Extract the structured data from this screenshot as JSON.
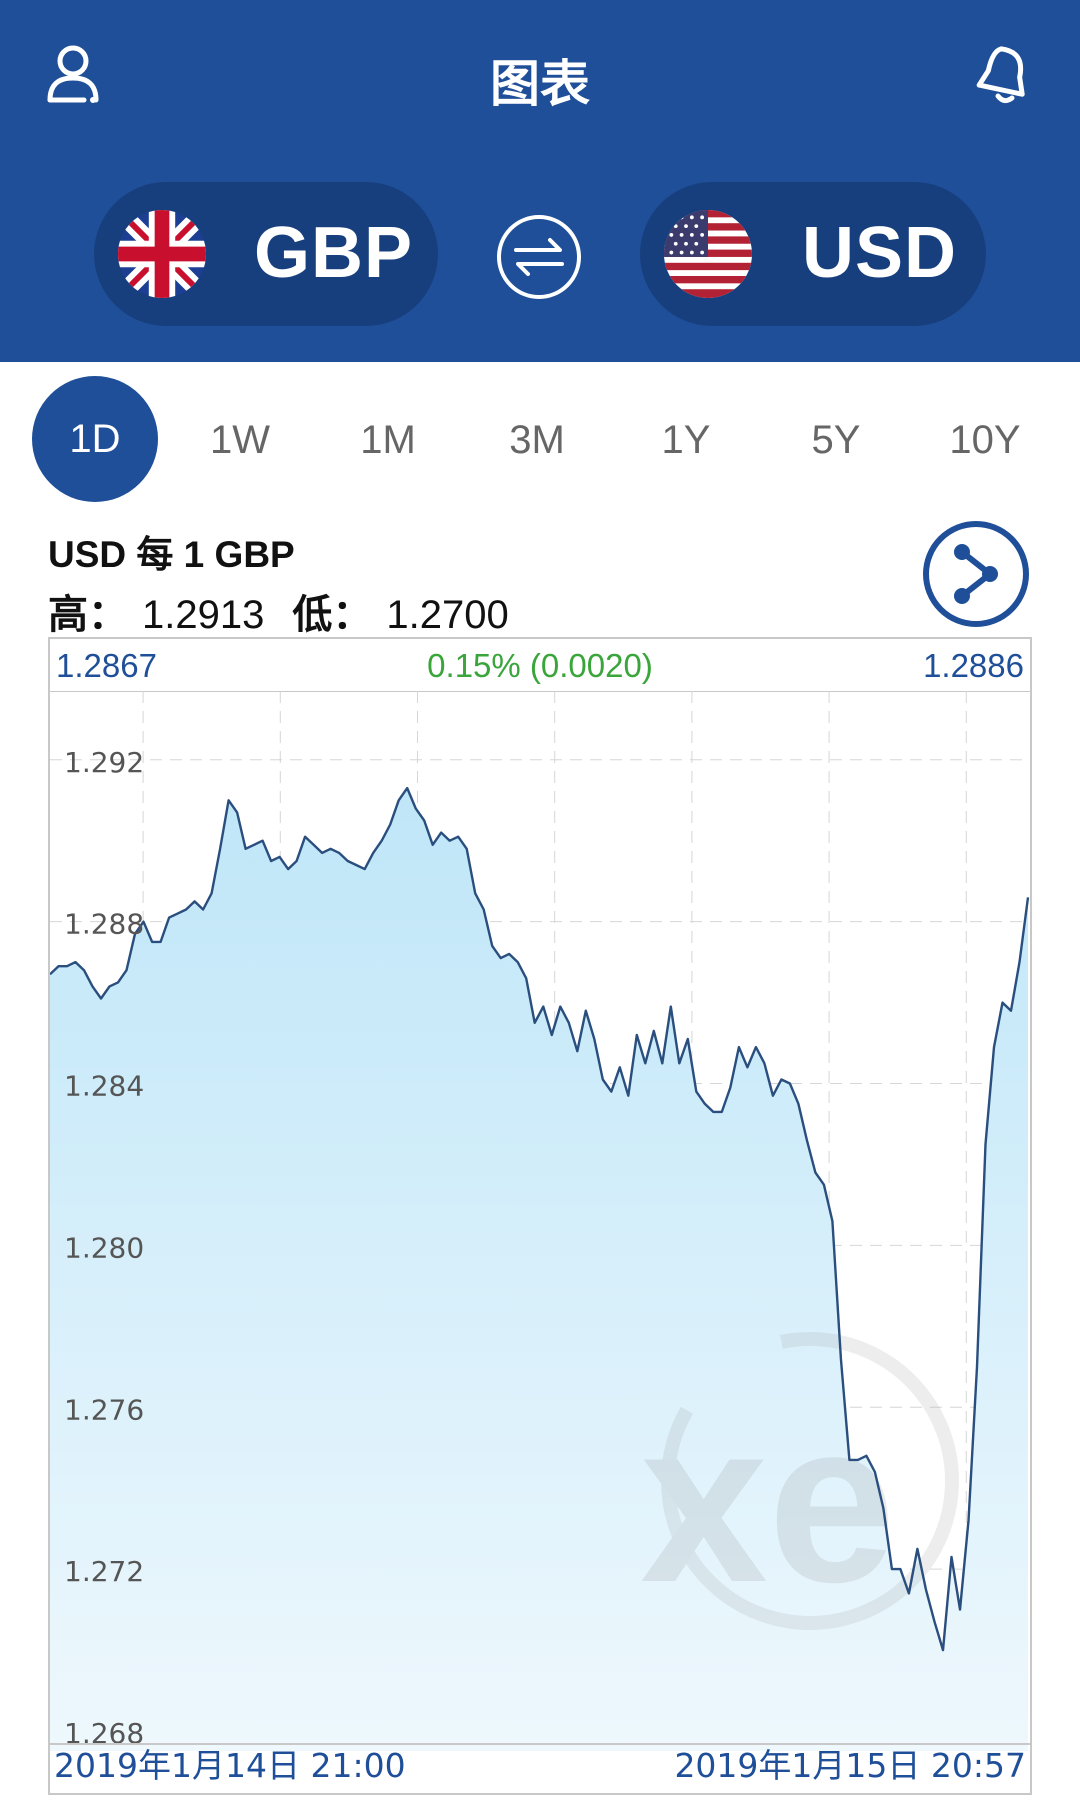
{
  "header": {
    "title": "图表",
    "user_icon": "user-icon",
    "alert_icon": "bell-icon"
  },
  "currency_from": {
    "code": "GBP",
    "flag": "uk-flag-icon"
  },
  "currency_to": {
    "code": "USD",
    "flag": "us-flag-icon"
  },
  "swap_icon": "swap-arrows-icon",
  "tabs": [
    {
      "label": "1D",
      "active": true
    },
    {
      "label": "1W",
      "active": false
    },
    {
      "label": "1M",
      "active": false
    },
    {
      "label": "3M",
      "active": false
    },
    {
      "label": "1Y",
      "active": false
    },
    {
      "label": "5Y",
      "active": false
    },
    {
      "label": "10Y",
      "active": false
    }
  ],
  "pair_label": "USD 每 1 GBP",
  "high_label": "高：",
  "high_value": "1.2913",
  "low_label": "低：",
  "low_value": "1.2700",
  "summary": {
    "open": "1.2867",
    "change": "0.15% (0.0020)",
    "close": "1.2886"
  },
  "dates": {
    "start": "2019年1月14日 21:00",
    "end": "2019年1月15日 20:57"
  },
  "watermark": "xe",
  "colors": {
    "header": "#1f4f98",
    "line": "#2a4e7e",
    "fill_top": "#bfe6f8",
    "change": "#3aa53a"
  },
  "chart_data": {
    "type": "area",
    "ylim": [
      1.268,
      1.2937
    ],
    "yticks": [
      "1.292",
      "1.288",
      "1.284",
      "1.280",
      "1.276",
      "1.272",
      "1.268"
    ],
    "ytick_values": [
      1.292,
      1.288,
      1.284,
      1.28,
      1.276,
      1.272,
      1.268
    ],
    "grid": true,
    "values": [
      1.2867,
      1.2869,
      1.2869,
      1.287,
      1.2868,
      1.2864,
      1.2861,
      1.2864,
      1.2865,
      1.2868,
      1.2877,
      1.288,
      1.2875,
      1.2875,
      1.2881,
      1.2882,
      1.2883,
      1.2885,
      1.2883,
      1.2887,
      1.2898,
      1.291,
      1.2907,
      1.2898,
      1.2899,
      1.29,
      1.2895,
      1.2896,
      1.2893,
      1.2895,
      1.2901,
      1.2899,
      1.2897,
      1.2898,
      1.2897,
      1.2895,
      1.2894,
      1.2893,
      1.2897,
      1.29,
      1.2904,
      1.291,
      1.2913,
      1.2908,
      1.2905,
      1.2899,
      1.2902,
      1.29,
      1.2901,
      1.2898,
      1.2887,
      1.2883,
      1.2874,
      1.2871,
      1.2872,
      1.287,
      1.2866,
      1.2855,
      1.2859,
      1.2852,
      1.2859,
      1.2855,
      1.2848,
      1.2858,
      1.2851,
      1.2841,
      1.2838,
      1.2844,
      1.2837,
      1.2852,
      1.2845,
      1.2853,
      1.2845,
      1.2859,
      1.2845,
      1.2851,
      1.2838,
      1.2835,
      1.2833,
      1.2833,
      1.2839,
      1.2849,
      1.2844,
      1.2849,
      1.2845,
      1.2837,
      1.2841,
      1.284,
      1.2835,
      1.2826,
      1.2818,
      1.2815,
      1.2806,
      1.2772,
      1.2747,
      1.2747,
      1.2748,
      1.2744,
      1.2735,
      1.272,
      1.272,
      1.2714,
      1.2725,
      1.2715,
      1.2707,
      1.27,
      1.2723,
      1.271,
      1.2732,
      1.277,
      1.2825,
      1.2849,
      1.286,
      1.2858,
      1.287,
      1.2886
    ]
  }
}
